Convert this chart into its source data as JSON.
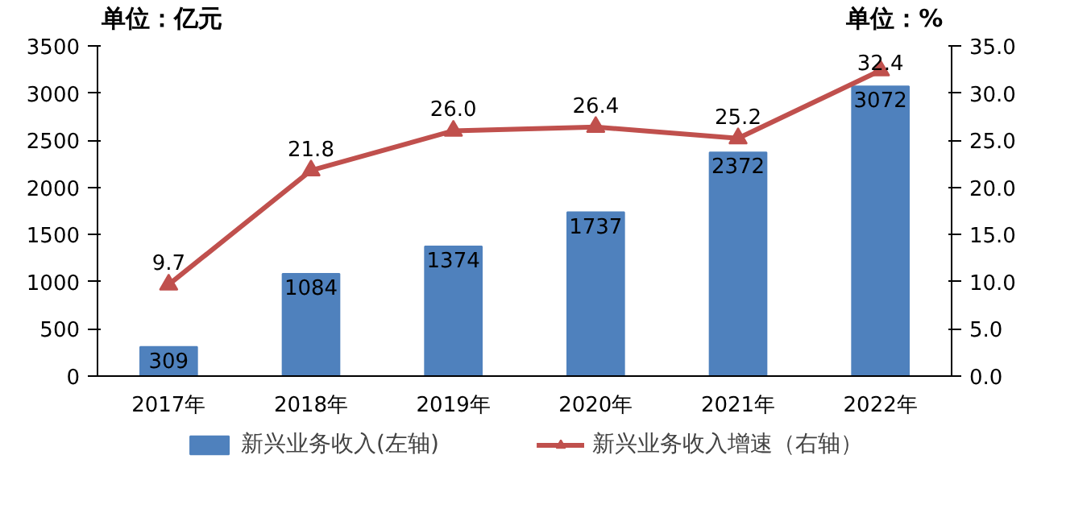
{
  "chart_data": {
    "type": "bar",
    "categories": [
      "2017年",
      "2018年",
      "2019年",
      "2020年",
      "2021年",
      "2022年"
    ],
    "ylabel": "单位：亿元",
    "y2label": "单位：%",
    "series": [
      {
        "name": "新兴业务收入(左轴)",
        "color": "#4f81bd",
        "values": [
          309,
          1084,
          1374,
          1737,
          2372,
          3072
        ],
        "value_labels": [
          "309",
          "1084",
          "1374",
          "1737",
          "2372",
          "3072"
        ]
      },
      {
        "name": "新兴业务收入增速（右轴）",
        "type": "line",
        "axis": "y2",
        "color": "#c0504d",
        "marker": "triangle",
        "values": [
          9.7,
          21.8,
          26.0,
          26.4,
          25.2,
          32.4
        ],
        "value_labels": [
          "9.7",
          "21.8",
          "26.0",
          "26.4",
          "25.2",
          "32.4"
        ]
      }
    ],
    "ylim": [
      0,
      3500
    ],
    "yticks": [
      0,
      500,
      1000,
      1500,
      2000,
      2500,
      3000,
      3500
    ],
    "y2lim": [
      0,
      35
    ],
    "y2ticks": [
      {
        "value": 0,
        "label": "0.0"
      },
      {
        "value": 5,
        "label": "5.0"
      },
      {
        "value": 10,
        "label": "10.0"
      },
      {
        "value": 15,
        "label": "15.0"
      },
      {
        "value": 20,
        "label": "20.0"
      },
      {
        "value": 25,
        "label": "25.0"
      },
      {
        "value": 30,
        "label": "30.0"
      },
      {
        "value": 35,
        "label": "35.0"
      }
    ],
    "data_labels": true,
    "grid": false,
    "legend": "bottom"
  }
}
